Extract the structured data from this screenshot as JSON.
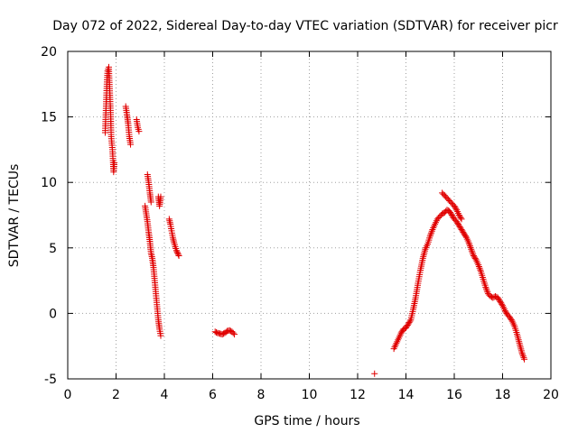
{
  "chart_data": {
    "type": "scatter",
    "title": "Day 072 of 2022, Sidereal Day-to-day VTEC variation (SDTVAR) for receiver picr",
    "xlabel": "GPS time / hours",
    "ylabel": "SDTVAR / TECUs",
    "xlim": [
      0,
      20
    ],
    "ylim": [
      -5,
      20
    ],
    "x_ticks": [
      0,
      2,
      4,
      6,
      8,
      10,
      12,
      14,
      16,
      18,
      20
    ],
    "y_ticks": [
      -5,
      0,
      5,
      10,
      15,
      20
    ],
    "grid": true,
    "marker": "+",
    "colors": {
      "series": "#e00000",
      "grid": "#a0a0a0",
      "frame": "#000000"
    },
    "series": [
      {
        "name": "SDTVAR",
        "segments": [
          [
            [
              1.55,
              13.8
            ],
            [
              1.6,
              16.5
            ],
            [
              1.62,
              17.5
            ],
            [
              1.65,
              18.5
            ],
            [
              1.7,
              18.8
            ],
            [
              1.72,
              17.8
            ],
            [
              1.75,
              16.5
            ],
            [
              1.78,
              15.0
            ],
            [
              1.8,
              13.5
            ],
            [
              1.85,
              12.5
            ],
            [
              1.88,
              11.5
            ],
            [
              1.9,
              10.8
            ],
            [
              1.93,
              11.5
            ]
          ],
          [
            [
              2.4,
              15.8
            ],
            [
              2.45,
              15.2
            ],
            [
              2.5,
              14.5
            ],
            [
              2.55,
              13.5
            ],
            [
              2.6,
              12.9
            ]
          ],
          [
            [
              2.85,
              14.8
            ],
            [
              2.9,
              14.2
            ],
            [
              2.95,
              13.9
            ]
          ],
          [
            [
              3.3,
              10.6
            ],
            [
              3.35,
              10.0
            ],
            [
              3.4,
              9.2
            ],
            [
              3.45,
              8.5
            ]
          ],
          [
            [
              3.2,
              8.2
            ],
            [
              3.25,
              7.6
            ],
            [
              3.3,
              7.0
            ],
            [
              3.35,
              6.2
            ],
            [
              3.4,
              5.5
            ],
            [
              3.45,
              4.6
            ],
            [
              3.5,
              4.2
            ],
            [
              3.55,
              3.5
            ],
            [
              3.6,
              2.5
            ],
            [
              3.65,
              1.5
            ],
            [
              3.7,
              0.5
            ],
            [
              3.75,
              -0.5
            ],
            [
              3.8,
              -1.2
            ],
            [
              3.85,
              -1.7
            ]
          ],
          [
            [
              3.75,
              8.9
            ],
            [
              3.8,
              8.2
            ],
            [
              3.85,
              8.9
            ]
          ],
          [
            [
              4.2,
              7.2
            ],
            [
              4.25,
              6.8
            ],
            [
              4.3,
              6.3
            ],
            [
              4.35,
              5.8
            ],
            [
              4.4,
              5.4
            ],
            [
              4.45,
              5.1
            ],
            [
              4.5,
              4.8
            ],
            [
              4.55,
              4.6
            ],
            [
              4.6,
              4.4
            ]
          ],
          [
            [
              6.1,
              -1.4
            ],
            [
              6.2,
              -1.5
            ],
            [
              6.3,
              -1.55
            ],
            [
              6.4,
              -1.6
            ],
            [
              6.5,
              -1.5
            ],
            [
              6.6,
              -1.35
            ],
            [
              6.7,
              -1.3
            ],
            [
              6.8,
              -1.4
            ],
            [
              6.9,
              -1.6
            ]
          ],
          [
            [
              12.7,
              -4.6
            ]
          ],
          [
            [
              13.5,
              -2.7
            ],
            [
              13.6,
              -2.3
            ],
            [
              13.7,
              -1.9
            ],
            [
              13.8,
              -1.5
            ],
            [
              13.9,
              -1.2
            ],
            [
              14.0,
              -1.1
            ],
            [
              14.1,
              -0.8
            ],
            [
              14.2,
              -0.5
            ],
            [
              14.3,
              0.3
            ],
            [
              14.4,
              1.2
            ],
            [
              14.5,
              2.3
            ],
            [
              14.6,
              3.3
            ],
            [
              14.7,
              4.2
            ],
            [
              14.8,
              4.9
            ],
            [
              14.9,
              5.3
            ],
            [
              15.0,
              5.9
            ],
            [
              15.1,
              6.4
            ],
            [
              15.2,
              6.8
            ],
            [
              15.3,
              7.2
            ],
            [
              15.4,
              7.4
            ],
            [
              15.5,
              7.6
            ],
            [
              15.6,
              7.7
            ],
            [
              15.7,
              7.9
            ],
            [
              15.8,
              7.8
            ],
            [
              15.9,
              7.5
            ],
            [
              16.0,
              7.2
            ],
            [
              16.1,
              7.0
            ],
            [
              16.2,
              6.7
            ],
            [
              16.3,
              6.4
            ],
            [
              16.4,
              6.1
            ],
            [
              16.5,
              5.8
            ],
            [
              16.6,
              5.4
            ],
            [
              16.7,
              4.9
            ],
            [
              16.8,
              4.4
            ],
            [
              16.9,
              4.1
            ],
            [
              17.0,
              3.7
            ],
            [
              17.1,
              3.2
            ],
            [
              17.2,
              2.6
            ],
            [
              17.3,
              2.0
            ],
            [
              17.4,
              1.5
            ],
            [
              17.5,
              1.3
            ],
            [
              17.6,
              1.2
            ],
            [
              17.7,
              1.3
            ],
            [
              17.8,
              1.2
            ],
            [
              17.9,
              0.9
            ],
            [
              18.0,
              0.6
            ],
            [
              18.1,
              0.2
            ],
            [
              18.2,
              -0.1
            ],
            [
              18.3,
              -0.3
            ],
            [
              18.4,
              -0.6
            ],
            [
              18.5,
              -1.0
            ],
            [
              18.6,
              -1.6
            ],
            [
              18.7,
              -2.3
            ],
            [
              18.8,
              -3.0
            ],
            [
              18.9,
              -3.5
            ]
          ],
          [
            [
              15.5,
              9.2
            ],
            [
              15.6,
              9.0
            ],
            [
              15.7,
              8.8
            ],
            [
              15.8,
              8.6
            ],
            [
              15.9,
              8.4
            ],
            [
              16.0,
              8.2
            ],
            [
              16.1,
              7.9
            ],
            [
              16.2,
              7.5
            ],
            [
              16.3,
              7.2
            ]
          ]
        ]
      }
    ]
  }
}
